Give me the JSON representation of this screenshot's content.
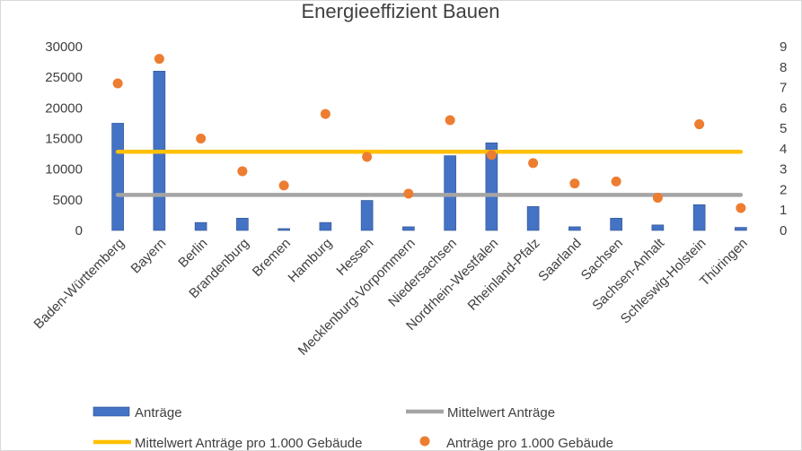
{
  "chart_data": {
    "type": "bar",
    "title": "Energieeffizient Bauen",
    "categories": [
      "Baden-Württemberg",
      "Bayern",
      "Berlin",
      "Brandenburg",
      "Bremen",
      "Hamburg",
      "Hessen",
      "Mecklenburg-Vorpommern",
      "Niedersachsen",
      "Nordrhein-Westfalen",
      "Rheinland-Pfalz",
      "Saarland",
      "Sachsen",
      "Sachsen-Anhalt",
      "Schleswig-Holstein",
      "Thüringen"
    ],
    "y_left": {
      "min": 0,
      "max": 30000,
      "ticks": [
        "0",
        "5000",
        "10000",
        "15000",
        "20000",
        "25000",
        "30000"
      ]
    },
    "y_right": {
      "min": 0,
      "max": 9,
      "ticks": [
        "0",
        "1",
        "2",
        "3",
        "4",
        "5",
        "6",
        "7",
        "8",
        "9"
      ]
    },
    "grid": false,
    "legend_position": "bottom",
    "series": [
      {
        "name": "Anträge",
        "kind": "bar",
        "axis": "left",
        "color": "#4472c4",
        "values": [
          17500,
          26000,
          1300,
          2000,
          300,
          1300,
          4900,
          600,
          12200,
          14300,
          3900,
          600,
          2000,
          900,
          4200,
          500
        ]
      },
      {
        "name": "Mittelwert Anträge",
        "kind": "line",
        "axis": "left",
        "color": "#a5a5a5",
        "values": [
          5800,
          5800,
          5800,
          5800,
          5800,
          5800,
          5800,
          5800,
          5800,
          5800,
          5800,
          5800,
          5800,
          5800,
          5800,
          5800
        ]
      },
      {
        "name": "Mittelwert Anträge pro 1.000 Gebäude",
        "kind": "line",
        "axis": "right",
        "color": "#ffc000",
        "values": [
          3.85,
          3.85,
          3.85,
          3.85,
          3.85,
          3.85,
          3.85,
          3.85,
          3.85,
          3.85,
          3.85,
          3.85,
          3.85,
          3.85,
          3.85,
          3.85
        ]
      },
      {
        "name": "Anträge pro 1.000 Gebäude",
        "kind": "scatter",
        "axis": "right",
        "color": "#ed7d31",
        "values": [
          7.2,
          8.4,
          4.5,
          2.9,
          2.2,
          5.7,
          3.6,
          1.8,
          5.4,
          3.7,
          3.3,
          2.3,
          2.4,
          1.6,
          5.2,
          1.1
        ]
      }
    ]
  }
}
